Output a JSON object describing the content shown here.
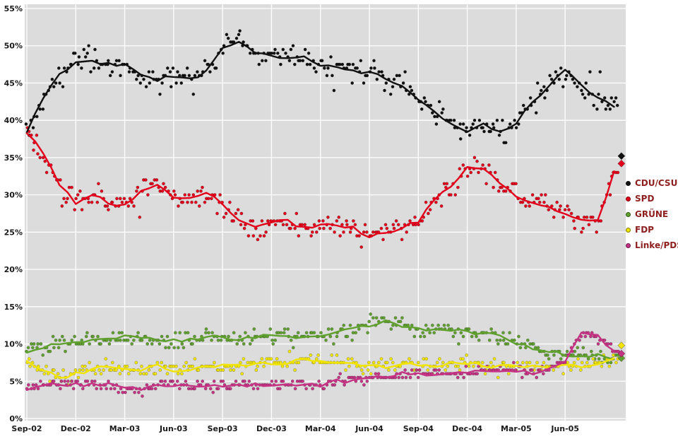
{
  "chart_data": {
    "type": "scatter",
    "title": "",
    "x_tick_labels": [
      "Sep-02",
      "Dec-02",
      "Mar-03",
      "Jun-03",
      "Sep-03",
      "Dec-03",
      "Mar-04",
      "Jun-04",
      "Sep-04",
      "Dec-04",
      "Mar-05",
      "Jun-05"
    ],
    "x_tick_months": [
      0,
      3,
      6,
      9,
      12,
      15,
      18,
      21,
      24,
      27,
      30,
      33
    ],
    "y_ticks": [
      0,
      5,
      10,
      15,
      20,
      25,
      30,
      35,
      40,
      45,
      50,
      55
    ],
    "y_tick_labels": [
      "0%",
      "5%",
      "10%",
      "15%",
      "20%",
      "25%",
      "30%",
      "35%",
      "40%",
      "45%",
      "50%",
      "55%"
    ],
    "ylim": [
      0,
      55
    ],
    "xlim_months": [
      0,
      36.5
    ],
    "plot_bg": "#dcdcdc",
    "grid_color": "#ffffff",
    "axis_text_color": "#1a1a1a",
    "legend_text_color": "#8e1f1f",
    "series": [
      {
        "name": "CDU/CSU",
        "color": "#111111",
        "trend": [
          38.5,
          43,
          46,
          48,
          48,
          47.5,
          47.5,
          46,
          45.5,
          46,
          45.5,
          46.5,
          49.5,
          50.5,
          49,
          48.5,
          48.5,
          48.5,
          47.5,
          47,
          46.5,
          46.5,
          45.5,
          44.5,
          43,
          41,
          39.5,
          38.5,
          39.5,
          38.5,
          39.5,
          42.5,
          44.5,
          47,
          44.5,
          43,
          42
        ],
        "final": 35.2,
        "jitter": 1.4
      },
      {
        "name": "SPD",
        "color": "#e2001a",
        "trend": [
          38.5,
          35.5,
          31.5,
          29,
          30,
          29,
          28.5,
          30.5,
          31.5,
          29.5,
          29.5,
          30.5,
          28.5,
          26.5,
          25.5,
          26.5,
          26.5,
          25.5,
          26,
          26,
          25.5,
          24.5,
          25,
          25.5,
          26.5,
          29.5,
          31,
          33.5,
          33.5,
          31.5,
          30,
          29,
          28.5,
          27.5,
          26.5,
          26.5,
          33
        ],
        "final": 34.2,
        "jitter": 1.4
      },
      {
        "name": "GRÜNE",
        "color": "#5fa02e",
        "trend": [
          9,
          9.5,
          10,
          10.5,
          10.5,
          10.5,
          11,
          11,
          10.5,
          10.5,
          10.5,
          11,
          11,
          10.5,
          11,
          11,
          11,
          11,
          11,
          11.5,
          12,
          12.5,
          13,
          12.5,
          12,
          12,
          12,
          11.5,
          11.5,
          11,
          10,
          9.5,
          9,
          8.5,
          8.5,
          8.5,
          8
        ],
        "final": 8.1,
        "jitter": 0.9
      },
      {
        "name": "FDP",
        "color": "#f0e400",
        "trend": [
          7.5,
          6.5,
          5.5,
          6,
          6.5,
          7,
          6.5,
          6.5,
          7,
          6.5,
          6.5,
          7,
          7,
          7,
          7.5,
          7.5,
          7.5,
          8,
          7.5,
          7.5,
          7.5,
          7,
          7,
          7.5,
          7,
          7,
          7.5,
          7.5,
          7,
          7,
          7,
          7,
          7,
          7,
          7,
          7.5,
          8
        ],
        "final": 9.8,
        "jitter": 0.9
      },
      {
        "name": "Linke/PDS",
        "color": "#c53384",
        "trend": [
          4,
          4.5,
          4.5,
          4.5,
          4.5,
          4.5,
          4,
          4,
          4.5,
          4.5,
          4.5,
          4.5,
          4.5,
          4.5,
          4.5,
          4.5,
          4.5,
          4.5,
          4.5,
          5,
          5,
          5.5,
          5.5,
          6,
          6,
          6,
          6,
          6,
          6.5,
          6.5,
          6.5,
          6,
          6.5,
          7.5,
          11.5,
          11,
          9
        ],
        "final": 8.7,
        "jitter": 0.6
      }
    ]
  }
}
